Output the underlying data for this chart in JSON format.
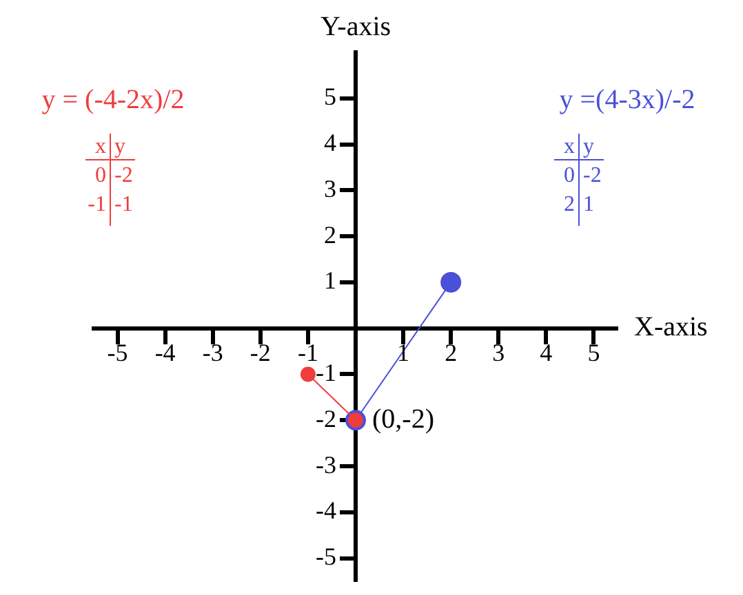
{
  "chart_data": {
    "type": "line",
    "xlabel": "X-axis",
    "ylabel": "Y-axis",
    "xlim": [
      -5.5,
      5.5
    ],
    "ylim": [
      -5.5,
      6
    ],
    "xticks": [
      -5,
      -4,
      -3,
      -2,
      -1,
      {
        "value": 0,
        "label": null
      },
      1,
      2,
      3,
      4,
      5
    ],
    "yticks": [
      -5,
      -4,
      -3,
      -2,
      -1,
      {
        "value": 0,
        "label": null
      },
      1,
      2,
      3,
      4,
      5
    ],
    "grid": false,
    "legend": false,
    "marker": "circle",
    "line_style": "solid",
    "series": [
      {
        "name": "y = (-4-2x)/2",
        "color": "#f03c3c",
        "x": [
          -1,
          0
        ],
        "values": [
          -1,
          -2
        ]
      },
      {
        "name": "y =(4-3x)/-2",
        "color": "#4a50d8",
        "x": [
          0,
          2
        ],
        "values": [
          -2,
          1
        ]
      }
    ],
    "annotations": [
      "x",
      "y",
      "0",
      "-2",
      "-1",
      "-1",
      "x",
      "y",
      "0",
      "-2",
      "2",
      "1",
      {
        "text": "(0,-2)",
        "x": 0,
        "y": -2
      }
    ]
  }
}
